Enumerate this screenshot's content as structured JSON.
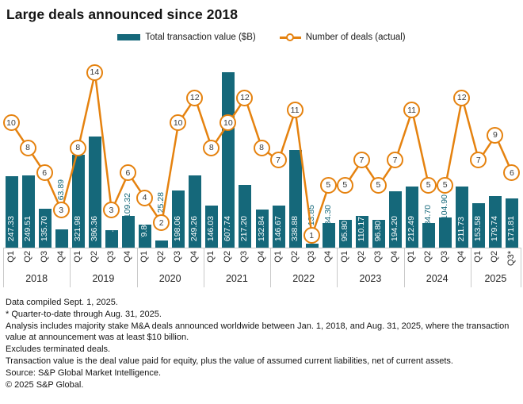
{
  "title": "Large deals announced since 2018",
  "legend": {
    "bar_label": "Total transaction value ($B)",
    "line_label": "Number of deals (actual)"
  },
  "colors": {
    "bar": "#15687a",
    "line": "#e5820f",
    "axis": "#c9c9c9"
  },
  "chart_data": {
    "type": "bar",
    "title": "Large deals announced since 2018",
    "series": [
      {
        "name": "Total transaction value ($B)",
        "type": "bar"
      },
      {
        "name": "Number of deals (actual)",
        "type": "line"
      }
    ],
    "value_axis_hidden": true,
    "years": [
      {
        "year": "2018",
        "quarters": [
          {
            "label": "Q1",
            "value": 247.33,
            "deals": 10
          },
          {
            "label": "Q2",
            "value": 249.51,
            "deals": 8
          },
          {
            "label": "Q3",
            "value": 135.7,
            "deals": 6
          },
          {
            "label": "Q4",
            "value": 63.89,
            "deals": 3,
            "value_label_outside": true
          }
        ]
      },
      {
        "year": "2019",
        "quarters": [
          {
            "label": "Q1",
            "value": 321.98,
            "deals": 8
          },
          {
            "label": "Q2",
            "value": 386.36,
            "deals": 14
          },
          {
            "label": "Q3",
            "value": 61.06,
            "deals": 3
          },
          {
            "label": "Q4",
            "value": 109.32,
            "deals": 6,
            "value_label_outside": true
          }
        ]
      },
      {
        "year": "2020",
        "quarters": [
          {
            "label": "Q1",
            "value": 79.8,
            "deals": 4
          },
          {
            "label": "Q2",
            "value": 25.28,
            "deals": 2,
            "value_label_outside": true
          },
          {
            "label": "Q3",
            "value": 198.06,
            "deals": 10
          },
          {
            "label": "Q4",
            "value": 249.26,
            "deals": 12
          }
        ]
      },
      {
        "year": "2021",
        "quarters": [
          {
            "label": "Q1",
            "value": 146.03,
            "deals": 8
          },
          {
            "label": "Q2",
            "value": 607.74,
            "deals": 10
          },
          {
            "label": "Q3",
            "value": 217.2,
            "deals": 12
          },
          {
            "label": "Q4",
            "value": 132.84,
            "deals": 8
          }
        ]
      },
      {
        "year": "2022",
        "quarters": [
          {
            "label": "Q1",
            "value": 146.67,
            "deals": 7
          },
          {
            "label": "Q2",
            "value": 338.88,
            "deals": 11
          },
          {
            "label": "Q3",
            "value": 13.85,
            "deals": 1,
            "value_label_outside": true
          },
          {
            "label": "Q4",
            "value": 84.3,
            "deals": 5,
            "value_label_outside": true
          }
        ]
      },
      {
        "year": "2023",
        "quarters": [
          {
            "label": "Q1",
            "value": 95.8,
            "deals": 5
          },
          {
            "label": "Q2",
            "value": 110.17,
            "deals": 7
          },
          {
            "label": "Q3",
            "value": 96.8,
            "deals": 5
          },
          {
            "label": "Q4",
            "value": 194.2,
            "deals": 7
          }
        ]
      },
      {
        "year": "2024",
        "quarters": [
          {
            "label": "Q1",
            "value": 212.49,
            "deals": 11
          },
          {
            "label": "Q2",
            "value": 84.7,
            "deals": 5,
            "value_label_outside": true
          },
          {
            "label": "Q3",
            "value": 104.9,
            "deals": 5,
            "value_label_outside": true
          },
          {
            "label": "Q4",
            "value": 211.73,
            "deals": 12
          }
        ]
      },
      {
        "year": "2025",
        "quarters": [
          {
            "label": "Q1",
            "value": 153.58,
            "deals": 7
          },
          {
            "label": "Q2",
            "value": 179.74,
            "deals": 9
          },
          {
            "label": "Q3*",
            "value": 171.81,
            "deals": 6
          }
        ]
      }
    ]
  },
  "footer": {
    "notes": [
      "Data compiled Sept. 1, 2025.",
      "* Quarter-to-date through Aug. 31, 2025.",
      "Analysis includes majority stake M&A deals announced worldwide between Jan. 1, 2018, and Aug. 31, 2025, where the transaction value at announcement was at least $10 billion.",
      "Excludes terminated deals.",
      "Transaction value is the deal value paid for equity, plus the value of assumed current liabilities, net of current assets.",
      "Source: S&P Global Market Intelligence.",
      "© 2025 S&P Global."
    ]
  }
}
